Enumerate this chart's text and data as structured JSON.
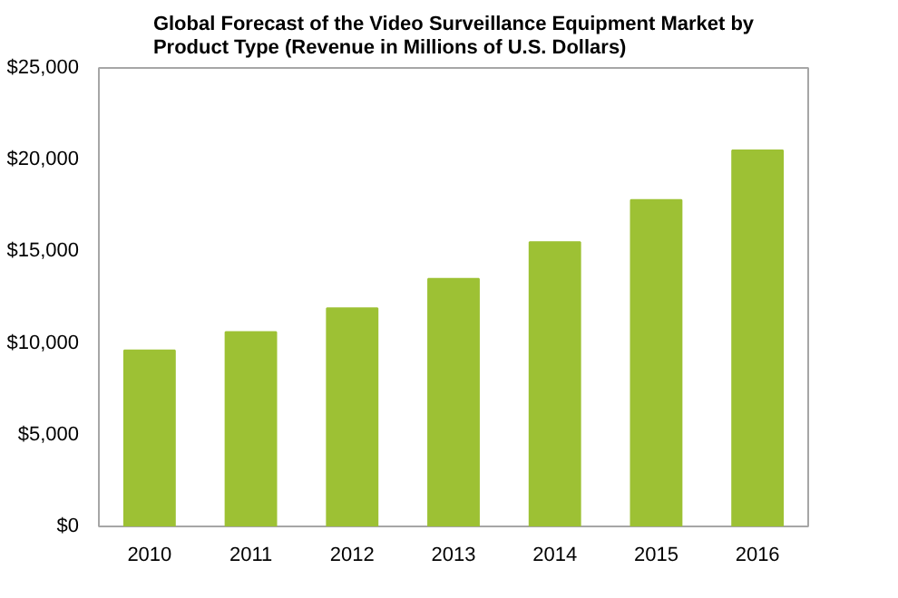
{
  "chart_data": {
    "type": "bar",
    "title": "Global Forecast of the Video Surveillance Equipment Market by\nProduct Type (Revenue in Millions of U.S. Dollars)",
    "categories": [
      "2010",
      "2011",
      "2012",
      "2013",
      "2014",
      "2015",
      "2016"
    ],
    "values": [
      9600,
      10600,
      11900,
      13500,
      15500,
      17800,
      20500
    ],
    "color": "#9dc134",
    "ylim": [
      0,
      25000
    ],
    "yticks": [
      {
        "value": 0,
        "label": "$0"
      },
      {
        "value": 5000,
        "label": "$5,000"
      },
      {
        "value": 10000,
        "label": "$10,000"
      },
      {
        "value": 15000,
        "label": "$15,000"
      },
      {
        "value": 20000,
        "label": "$20,000"
      },
      {
        "value": 25000,
        "label": "$25,000"
      }
    ],
    "grid": false
  }
}
